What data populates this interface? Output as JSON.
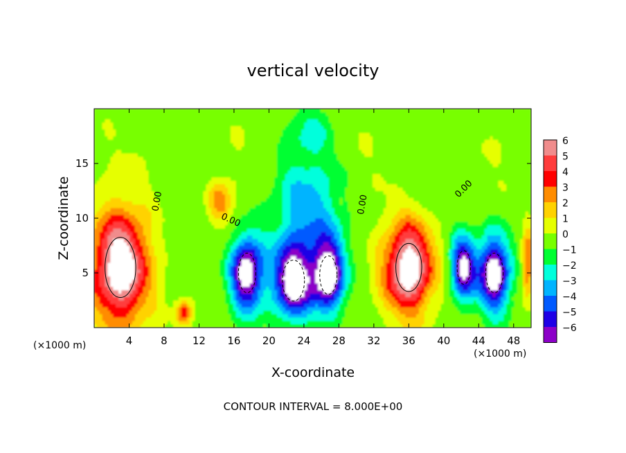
{
  "chart_data": {
    "type": "heatmap",
    "title": "vertical velocity",
    "xlabel": "X-coordinate",
    "ylabel": "Z-coordinate",
    "x_unit_label": "(×1000 m)",
    "z_unit_label": "(×1000 m)",
    "footer": "CONTOUR INTERVAL = 8.000E+00",
    "xlim": [
      0,
      50
    ],
    "ylim": [
      0,
      20
    ],
    "x_ticks": [
      4,
      8,
      12,
      16,
      20,
      24,
      28,
      32,
      36,
      40,
      44,
      48
    ],
    "y_ticks": [
      5,
      10,
      15
    ],
    "colorbar": {
      "min": -6,
      "max": 6,
      "tick_labels": [
        "6",
        "5",
        "4",
        "3",
        "2",
        "1",
        "0",
        "−1",
        "−2",
        "−3",
        "−4",
        "−5",
        "−6"
      ],
      "colors": [
        "#f08c8c",
        "#ff3c3c",
        "#ff0000",
        "#ff8c00",
        "#ffd200",
        "#e6ff00",
        "#78ff00",
        "#00ff32",
        "#00ffdc",
        "#00b4ff",
        "#005aff",
        "#1e00e6",
        "#8c00c8"
      ]
    },
    "contour_labels": [
      {
        "text": "0.00",
        "x": 7.5,
        "z": 11.5
      },
      {
        "text": "0.00",
        "x": 15.5,
        "z": 9.6
      },
      {
        "text": "0.00",
        "x": 31.0,
        "z": 11.2
      },
      {
        "text": "0.00",
        "x": 42.5,
        "z": 12.5
      }
    ],
    "features": [
      {
        "kind": "updraft",
        "x": 3.0,
        "z": 5.5,
        "rx": 3.2,
        "rz": 5.0,
        "peak": 8
      },
      {
        "kind": "updraft",
        "x": 36.0,
        "z": 5.5,
        "rx": 2.7,
        "rz": 4.0,
        "peak": 8
      },
      {
        "kind": "updraft",
        "x": 10.3,
        "z": 1.3,
        "rx": 0.9,
        "rz": 1.1,
        "peak": 4
      },
      {
        "kind": "updraft",
        "x": 49.6,
        "z": 6.0,
        "rx": 0.6,
        "rz": 3.0,
        "peak": 4
      },
      {
        "kind": "updraft",
        "x": 14.5,
        "z": 11.5,
        "rx": 1.3,
        "rz": 1.8,
        "peak": 3
      },
      {
        "kind": "downdraft",
        "x": 17.5,
        "z": 5.0,
        "rx": 1.8,
        "rz": 3.3,
        "peak": -8
      },
      {
        "kind": "downdraft",
        "x": 22.8,
        "z": 4.3,
        "rx": 2.3,
        "rz": 3.4,
        "peak": -8
      },
      {
        "kind": "downdraft",
        "x": 26.8,
        "z": 4.8,
        "rx": 1.8,
        "rz": 3.2,
        "peak": -8
      },
      {
        "kind": "downdraft",
        "x": 42.3,
        "z": 5.5,
        "rx": 1.4,
        "rz": 2.8,
        "peak": -7
      },
      {
        "kind": "downdraft",
        "x": 45.8,
        "z": 5.0,
        "rx": 1.8,
        "rz": 3.3,
        "peak": -8
      },
      {
        "kind": "downdraft",
        "x": 24.5,
        "z": 10.5,
        "rx": 4.0,
        "rz": 4.5,
        "peak": -3
      },
      {
        "kind": "downdraft",
        "x": 24.5,
        "z": 17.5,
        "rx": 2.5,
        "rz": 2.5,
        "peak": -1.5
      }
    ]
  }
}
